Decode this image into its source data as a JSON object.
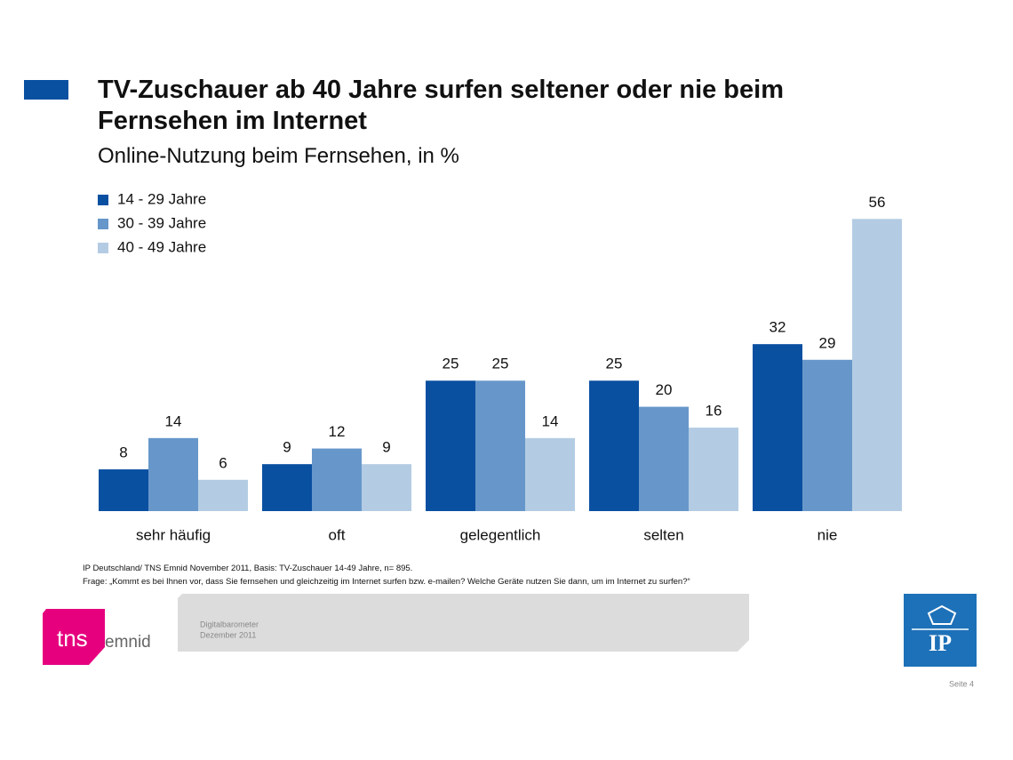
{
  "chart_data": {
    "type": "bar",
    "title": "TV-Zuschauer ab 40 Jahre surfen seltener oder nie beim Fernsehen im Internet",
    "subtitle": "Online-Nutzung beim Fernsehen, in %",
    "categories": [
      "sehr häufig",
      "oft",
      "gelegentlich",
      "selten",
      "nie"
    ],
    "series": [
      {
        "name": "14 - 29 Jahre",
        "color": "#0a50a1",
        "values": [
          8,
          9,
          25,
          25,
          32
        ]
      },
      {
        "name": "30 - 39 Jahre",
        "color": "#6797ca",
        "values": [
          14,
          12,
          25,
          20,
          29
        ]
      },
      {
        "name": "40 - 49 Jahre",
        "color": "#b4cce3",
        "values": [
          6,
          9,
          14,
          16,
          56
        ]
      }
    ],
    "legend": "upper left"
  },
  "footnotes": [
    "IP Deutschland/ TNS Emnid November  2011, Basis: TV-Zuschauer 14-49 Jahre,  n= 895.",
    "Frage: „Kommt es bei Ihnen vor, dass Sie fernsehen und gleichzeitig im Internet surfen bzw. e-mailen? Welche Geräte nutzen Sie dann, um im Internet zu surfen?“"
  ],
  "footer": {
    "label": "Digitalbarometer",
    "date": "Dezember 2011",
    "page": "Seite 4"
  },
  "logos": {
    "tns": "tns",
    "emnid": "emnid",
    "ip": "IP"
  }
}
